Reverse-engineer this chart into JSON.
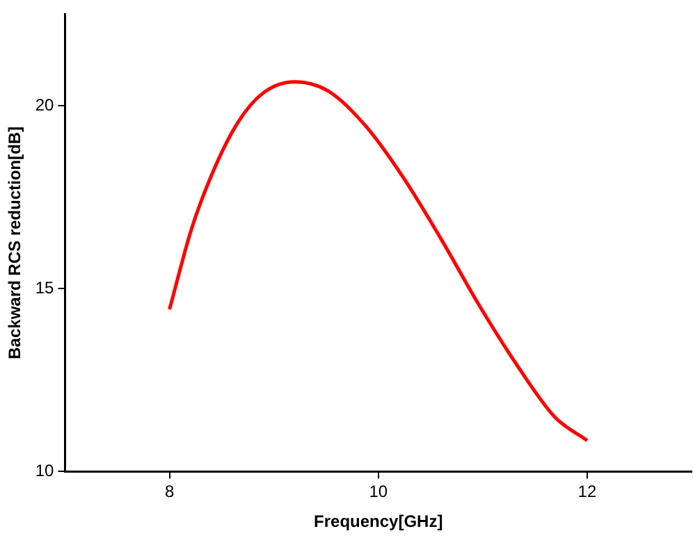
{
  "chart_data": {
    "type": "line",
    "xlabel": "Frequency[GHz]",
    "ylabel": "Backward RCS reduction[dB]",
    "xlim": [
      7,
      13
    ],
    "xticks": [
      8,
      10,
      12
    ],
    "ylim": [
      10,
      22.5
    ],
    "yticks": [
      10,
      15,
      20
    ],
    "grid": false,
    "legend": false,
    "marker": "none",
    "line_style": "solid",
    "series": [
      {
        "color": "#ff0000",
        "x": [
          8,
          8.21,
          8.43,
          8.66,
          8.89,
          9.2,
          9.52,
          9.88,
          10.24,
          10.6,
          10.96,
          11.33,
          11.69,
          12
        ],
        "values": [
          14.43,
          16.62,
          18.28,
          19.56,
          20.33,
          20.65,
          20.4,
          19.44,
          18.03,
          16.36,
          14.57,
          12.9,
          11.49,
          10.85
        ]
      }
    ]
  }
}
